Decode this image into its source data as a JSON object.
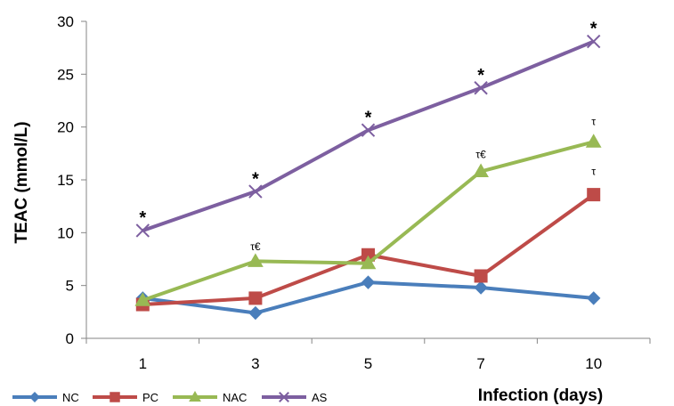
{
  "chart_data": {
    "type": "line",
    "title": "",
    "xlabel": "Infection (days)",
    "ylabel": "TEAC (mmol/L)",
    "categories": [
      "1",
      "3",
      "5",
      "7",
      "10"
    ],
    "ylim": [
      0,
      30
    ],
    "yticks": [
      "0",
      "5",
      "10",
      "15",
      "20",
      "25",
      "30"
    ],
    "grid": false,
    "legend_position": "bottom-left",
    "series": [
      {
        "name": "NC",
        "values": [
          3.8,
          2.4,
          5.3,
          4.8,
          3.8
        ],
        "color": "#4a7ebb",
        "marker": "diamond"
      },
      {
        "name": "PC",
        "values": [
          3.2,
          3.8,
          7.9,
          5.9,
          13.6
        ],
        "color": "#be4b48",
        "marker": "square"
      },
      {
        "name": "NAC",
        "values": [
          3.6,
          7.3,
          7.1,
          15.8,
          18.6
        ],
        "color": "#98b954",
        "marker": "triangle"
      },
      {
        "name": "AS",
        "values": [
          10.2,
          13.9,
          19.7,
          23.7,
          28.1
        ],
        "color": "#7d5fa0",
        "marker": "x"
      }
    ],
    "annotations": [
      {
        "category": "1",
        "y": 11.7,
        "text": "*",
        "style": "star"
      },
      {
        "category": "3",
        "y": 15.4,
        "text": "*",
        "style": "star"
      },
      {
        "category": "5",
        "y": 21.2,
        "text": "*",
        "style": "star"
      },
      {
        "category": "7",
        "y": 25.2,
        "text": "*",
        "style": "star"
      },
      {
        "category": "10",
        "y": 29.6,
        "text": "*",
        "style": "star"
      },
      {
        "category": "3",
        "y": 8.7,
        "text": "τ€",
        "style": "small"
      },
      {
        "category": "7",
        "y": 17.4,
        "text": "τ€",
        "style": "small"
      },
      {
        "category": "10",
        "y": 20.5,
        "text": "τ",
        "style": "small"
      },
      {
        "category": "10",
        "y": 15.8,
        "text": "τ",
        "style": "small"
      }
    ]
  }
}
